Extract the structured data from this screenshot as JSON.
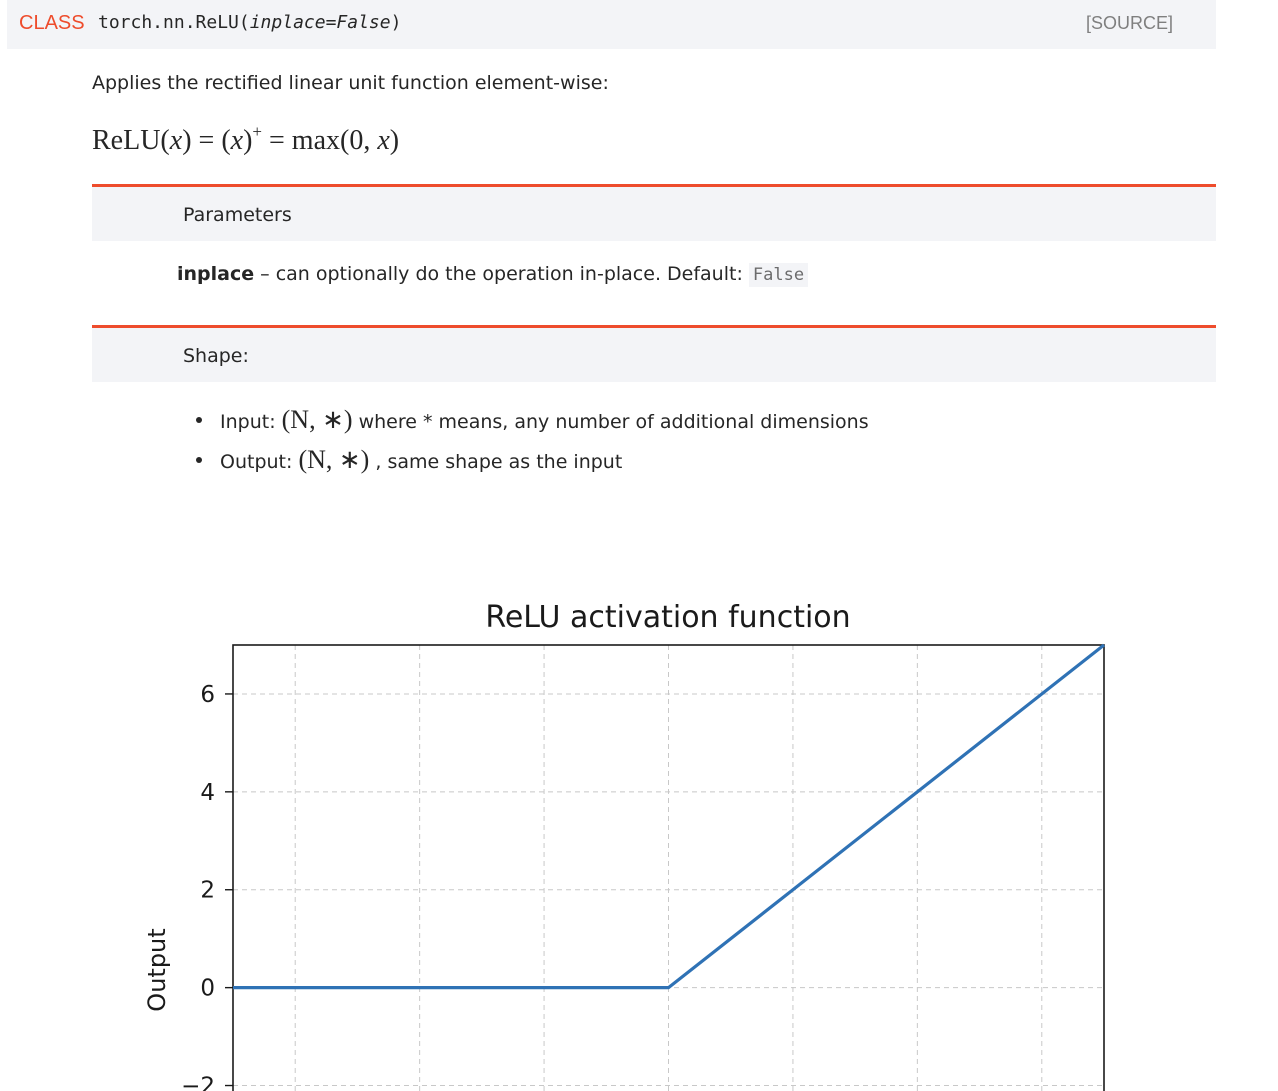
{
  "signature": {
    "keyword": "CLASS",
    "name": "torch.nn.ReLU(",
    "params": "inplace=False",
    "close": ")",
    "source_link": "[SOURCE]"
  },
  "description": "Applies the rectified linear unit function element-wise:",
  "formula": {
    "lhs_name": "ReLU(",
    "var": "x",
    "mid1": ") = (",
    "mid2": ")",
    "sup": "+",
    "mid3": " = max(0, ",
    "end": ")"
  },
  "parameters": {
    "heading": "Parameters",
    "name": "inplace",
    "text": " – can optionally do the operation in-place. Default: ",
    "default": "False"
  },
  "shape": {
    "heading": "Shape:",
    "input_label": "Input: ",
    "input_math": "(N, ∗)",
    "input_text": " where * means, any number of additional dimensions",
    "output_label": "Output: ",
    "output_math": "(N, ∗)",
    "output_text": " , same shape as the input"
  },
  "chart_data": {
    "type": "line",
    "title": "ReLU activation function",
    "xlabel": "",
    "ylabel": "Output",
    "xlim": [
      -7,
      7
    ],
    "ylim": [
      -2.5,
      7
    ],
    "yticks": [
      -2,
      0,
      2,
      4,
      6
    ],
    "xgrid": [
      -6,
      -4,
      -2,
      0,
      2,
      4,
      6
    ],
    "grid": true,
    "series": [
      {
        "x": [
          -7,
          0,
          7
        ],
        "y": [
          0,
          0,
          7
        ],
        "color": "#2f72b5"
      }
    ]
  }
}
